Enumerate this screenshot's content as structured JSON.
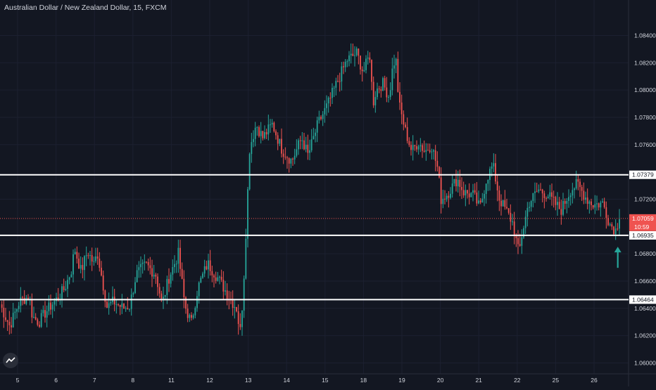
{
  "title": "Australian Dollar / New Zealand Dollar, 15, FXCM",
  "colors": {
    "background": "#131722",
    "up": "#26a69a",
    "down": "#ef5350",
    "axis_text": "#d1d4dc",
    "grid": "#1c2030",
    "level_line": "#ffffff",
    "price_line": "#ef5350",
    "arrow": "#26a69a"
  },
  "chart_data": {
    "type": "candlestick",
    "y_axis": {
      "ticks": [
        "1.08400",
        "1.08200",
        "1.08000",
        "1.07800",
        "1.07600",
        "1.07200",
        "1.06800",
        "1.06600",
        "1.06400",
        "1.06200",
        "1.06000"
      ],
      "range": [
        1.0592,
        1.0866
      ]
    },
    "x_axis": {
      "ticks": [
        "5",
        "6",
        "7",
        "8",
        "11",
        "12",
        "13",
        "14",
        "15",
        "18",
        "19",
        "20",
        "21",
        "22",
        "25",
        "26"
      ]
    },
    "path": [
      [
        5,
        1.0643
      ],
      [
        5.3,
        1.0627
      ],
      [
        5.6,
        1.0645
      ],
      [
        5.9,
        1.0649
      ],
      [
        6.0,
        1.0634
      ],
      [
        6.2,
        1.063
      ],
      [
        6.4,
        1.0637
      ],
      [
        6.6,
        1.0643
      ],
      [
        6.8,
        1.0648
      ],
      [
        7.0,
        1.0655
      ],
      [
        7.2,
        1.0668
      ],
      [
        7.3,
        1.0684
      ],
      [
        7.5,
        1.0667
      ],
      [
        7.7,
        1.0682
      ],
      [
        7.9,
        1.0672
      ],
      [
        8.0,
        1.0681
      ],
      [
        8.1,
        1.0668
      ],
      [
        8.3,
        1.0641
      ],
      [
        8.5,
        1.0645
      ],
      [
        8.8,
        1.064
      ],
      [
        9.0,
        1.0642
      ],
      [
        9.2,
        1.0665
      ],
      [
        9.5,
        1.0672
      ],
      [
        9.8,
        1.0665
      ],
      [
        10.0,
        1.0643
      ],
      [
        10.2,
        1.0662
      ],
      [
        10.5,
        1.068
      ],
      [
        10.7,
        1.0642
      ],
      [
        10.9,
        1.0629
      ],
      [
        11.1,
        1.0655
      ],
      [
        11.4,
        1.0673
      ],
      [
        11.7,
        1.0663
      ],
      [
        11.9,
        1.0655
      ],
      [
        12.1,
        1.0647
      ],
      [
        12.3,
        1.064
      ],
      [
        12.4,
        1.0621
      ],
      [
        12.5,
        1.0652
      ],
      [
        12.7,
        1.0758
      ],
      [
        12.9,
        1.0775
      ],
      [
        13.1,
        1.0765
      ],
      [
        13.4,
        1.0775
      ],
      [
        13.7,
        1.0756
      ],
      [
        14.0,
        1.0748
      ],
      [
        14.3,
        1.0765
      ],
      [
        14.5,
        1.0752
      ],
      [
        14.8,
        1.0775
      ],
      [
        15.1,
        1.0789
      ],
      [
        15.4,
        1.0806
      ],
      [
        15.7,
        1.0822
      ],
      [
        16.0,
        1.0827
      ],
      [
        16.2,
        1.0813
      ],
      [
        16.4,
        1.0826
      ],
      [
        16.5,
        1.079
      ],
      [
        16.6,
        1.08
      ],
      [
        16.8,
        1.0805
      ],
      [
        17.0,
        1.0795
      ],
      [
        17.1,
        1.0815
      ],
      [
        17.2,
        1.0825
      ],
      [
        17.3,
        1.079
      ],
      [
        17.5,
        1.077
      ],
      [
        17.7,
        1.0755
      ],
      [
        17.9,
        1.0762
      ],
      [
        18.1,
        1.0755
      ],
      [
        18.3,
        1.076
      ],
      [
        18.5,
        1.0742
      ],
      [
        18.6,
        1.072
      ],
      [
        18.8,
        1.0724
      ],
      [
        19.1,
        1.0735
      ],
      [
        19.3,
        1.0725
      ],
      [
        19.6,
        1.0723
      ],
      [
        19.8,
        1.0713
      ],
      [
        20.0,
        1.0735
      ],
      [
        20.2,
        1.0745
      ],
      [
        20.4,
        1.072
      ],
      [
        20.6,
        1.0712
      ],
      [
        20.8,
        1.0703
      ],
      [
        21.0,
        1.068
      ],
      [
        21.1,
        1.0695
      ],
      [
        21.3,
        1.0717
      ],
      [
        21.6,
        1.0727
      ],
      [
        21.9,
        1.0723
      ],
      [
        22.1,
        1.0717
      ],
      [
        22.3,
        1.0712
      ],
      [
        22.6,
        1.0727
      ],
      [
        22.8,
        1.0731
      ],
      [
        23.1,
        1.072
      ],
      [
        23.3,
        1.0716
      ],
      [
        23.6,
        1.0717
      ],
      [
        23.8,
        1.0702
      ],
      [
        24.0,
        1.0697
      ],
      [
        24.1,
        1.0709
      ]
    ],
    "levels": [
      {
        "label": "1.07379",
        "value": 1.07379
      },
      {
        "label": "1.06935",
        "value": 1.06935
      },
      {
        "label": "1.06464",
        "value": 1.06464
      }
    ],
    "current_price": {
      "label": "1.07059",
      "value": 1.07059,
      "countdown": "10:59"
    },
    "annotation": {
      "type": "arrow-up",
      "x": 24.05,
      "value": 1.068
    }
  }
}
